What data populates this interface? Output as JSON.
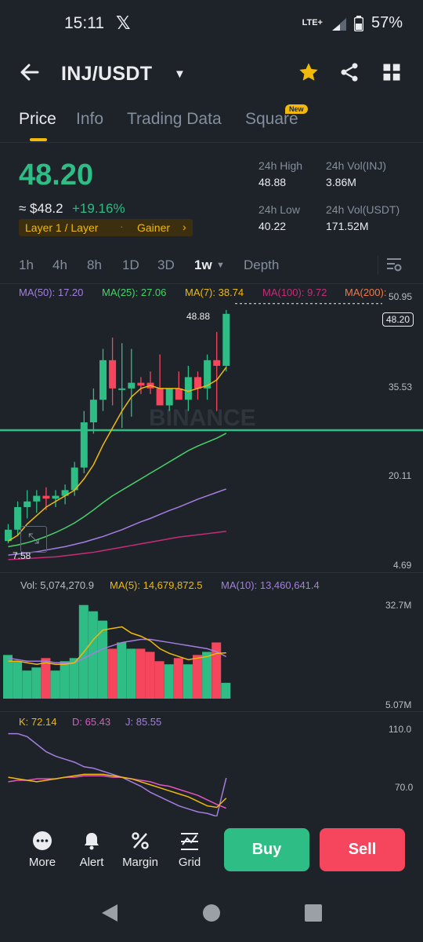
{
  "status_bar": {
    "time": "15:11",
    "app_icon": "x-logo",
    "network": "LTE+",
    "battery": "57%"
  },
  "header": {
    "back_icon": "arrow-left-icon",
    "pair": "INJ/USDT",
    "star_icon": "star-icon",
    "share_icon": "share-icon",
    "layout_icon": "grid-icon"
  },
  "tabs": [
    {
      "label": "Price"
    },
    {
      "label": "Info"
    },
    {
      "label": "Trading Data"
    },
    {
      "label": "Square"
    }
  ],
  "new_badge": "New",
  "price": {
    "last": "48.20",
    "approx": "≈ $48.2",
    "change": "+19.16%",
    "tag1": "Layer 1 / Layer",
    "tag2": "Gainer"
  },
  "stats": {
    "high_label": "24h High",
    "high_value": "48.88",
    "vol_base_label": "24h Vol(INJ)",
    "vol_base_value": "3.86M",
    "low_label": "24h Low",
    "low_value": "40.22",
    "vol_quote_label": "24h Vol(USDT)",
    "vol_quote_value": "171.52M"
  },
  "timeframes": [
    "1h",
    "4h",
    "8h",
    "1D",
    "3D",
    "1w",
    "Depth"
  ],
  "active_timeframe": "1w",
  "ma_legend": [
    {
      "label": "MA(50): 17.20",
      "color": "#a47ee0"
    },
    {
      "label": "MA(25): 27.06",
      "color": "#46d369"
    },
    {
      "label": "MA(7): 38.74",
      "color": "#f0b90b"
    },
    {
      "label": "MA(100): 9.72",
      "color": "#c72c78"
    },
    {
      "label": "MA(200): ",
      "color": "#f0794a"
    }
  ],
  "price_axis": [
    "50.95",
    "35.53",
    "20.11",
    "4.69"
  ],
  "high_marker": "48.88",
  "low_marker": "7.58",
  "last_price_tag": "48.20",
  "watermark": "BINANCE",
  "volume_legend": {
    "vol": "Vol: 5,074,270.9",
    "ma5": "MA(5): 14,679,872.5",
    "ma10": "MA(10): 13,460,641.4"
  },
  "volume_axis": [
    "32.7M",
    "5.07M"
  ],
  "kdj_legend": {
    "k": "K: 72.14",
    "d": "D: 65.43",
    "j": "J: 85.55"
  },
  "kdj_axis": [
    "110.0",
    "70.0"
  ],
  "colors": {
    "up": "#2ebd85",
    "down": "#f6465d",
    "accent": "#f0b90b"
  },
  "bottom_bar": [
    {
      "label": "More",
      "icon": "more-icon"
    },
    {
      "label": "Alert",
      "icon": "bell-icon"
    },
    {
      "label": "Margin",
      "icon": "percent-icon"
    },
    {
      "label": "Grid",
      "icon": "grid-bot-icon"
    }
  ],
  "buy_label": "Buy",
  "sell_label": "Sell",
  "chart_data": {
    "type": "candlestick",
    "ylim": [
      4.69,
      50.95
    ],
    "candles": [
      {
        "o": 8,
        "h": 11,
        "l": 7.6,
        "c": 10
      },
      {
        "o": 10,
        "h": 15,
        "l": 9,
        "c": 14
      },
      {
        "o": 14,
        "h": 17,
        "l": 12,
        "c": 15
      },
      {
        "o": 15,
        "h": 17,
        "l": 13,
        "c": 16
      },
      {
        "o": 16,
        "h": 17.5,
        "l": 13.5,
        "c": 15.5
      },
      {
        "o": 15.5,
        "h": 17,
        "l": 14,
        "c": 16
      },
      {
        "o": 16,
        "h": 18,
        "l": 14.5,
        "c": 17
      },
      {
        "o": 17,
        "h": 22,
        "l": 16,
        "c": 21
      },
      {
        "o": 21,
        "h": 31,
        "l": 20,
        "c": 29
      },
      {
        "o": 29,
        "h": 35,
        "l": 27,
        "c": 33
      },
      {
        "o": 33,
        "h": 42,
        "l": 31,
        "c": 40
      },
      {
        "o": 40,
        "h": 44,
        "l": 32,
        "c": 35
      },
      {
        "o": 35,
        "h": 43,
        "l": 28,
        "c": 35
      },
      {
        "o": 35,
        "h": 42,
        "l": 30,
        "c": 36
      },
      {
        "o": 36,
        "h": 37,
        "l": 34,
        "c": 35.5
      },
      {
        "o": 36,
        "h": 38,
        "l": 34,
        "c": 35
      },
      {
        "o": 35,
        "h": 41,
        "l": 32,
        "c": 32
      },
      {
        "o": 32,
        "h": 35,
        "l": 31,
        "c": 35
      },
      {
        "o": 35,
        "h": 38,
        "l": 33,
        "c": 33
      },
      {
        "o": 33,
        "h": 39,
        "l": 31,
        "c": 37
      },
      {
        "o": 37,
        "h": 38,
        "l": 33,
        "c": 35
      },
      {
        "o": 35,
        "h": 41,
        "l": 33,
        "c": 40
      },
      {
        "o": 40,
        "h": 45,
        "l": 31,
        "c": 39
      },
      {
        "o": 39,
        "h": 48.88,
        "l": 38,
        "c": 48.2
      }
    ],
    "ma7": [
      8,
      9,
      11,
      12.5,
      14,
      15,
      16,
      17,
      19,
      21.5,
      25,
      28,
      31,
      33.5,
      35,
      35.5,
      35,
      35,
      35,
      34.5,
      35,
      35.5,
      36.5,
      38.74
    ],
    "ma25": [
      7,
      7.3,
      7.7,
      8.2,
      8.8,
      9.5,
      10.3,
      11.2,
      12.3,
      13.5,
      14.8,
      16,
      17,
      18,
      19,
      20,
      21,
      22,
      23,
      24,
      24.8,
      25.5,
      26.2,
      27.06
    ],
    "ma50": [
      5.5,
      5.7,
      5.9,
      6.1,
      6.4,
      6.7,
      7,
      7.4,
      7.8,
      8.3,
      8.8,
      9.4,
      10,
      10.7,
      11.4,
      12,
      12.7,
      13.4,
      14,
      14.7,
      15.4,
      16,
      16.6,
      17.2
    ],
    "ma100": [
      4.7,
      4.8,
      4.9,
      5,
      5.1,
      5.2,
      5.4,
      5.6,
      5.8,
      6,
      6.3,
      6.6,
      6.9,
      7.2,
      7.5,
      7.8,
      8.1,
      8.4,
      8.7,
      8.9,
      9.1,
      9.3,
      9.5,
      9.72
    ],
    "volume": {
      "ylim": [
        0,
        32.7
      ],
      "values": [
        14,
        12,
        9,
        10,
        13,
        9,
        12,
        13,
        30,
        28,
        25,
        16,
        18,
        16,
        16,
        15,
        12,
        11,
        13,
        11,
        14,
        15,
        18,
        5.07
      ],
      "ma5": [
        12,
        12,
        11.5,
        11,
        11.5,
        11,
        11,
        11.5,
        15,
        19,
        22,
        22.5,
        23,
        21,
        20,
        18.5,
        16,
        14.5,
        13.5,
        12.5,
        13,
        13.5,
        14.5,
        14.68
      ],
      "ma10": [
        13,
        12.5,
        12,
        12,
        12,
        11.5,
        11.5,
        11.5,
        13,
        14.5,
        16,
        17,
        18,
        18.5,
        19,
        19,
        18.5,
        18,
        17.5,
        17,
        16.5,
        16,
        15,
        13.46
      ]
    },
    "kdj": {
      "ylim": [
        60,
        120
      ],
      "k": [
        86,
        85,
        84,
        83,
        84,
        85,
        86,
        87,
        88,
        88,
        88,
        87,
        86,
        85,
        83,
        81,
        79,
        77,
        75,
        73,
        70,
        67,
        66,
        72.14
      ],
      "d": [
        83,
        84,
        84,
        85,
        85,
        85,
        86,
        86,
        87,
        87,
        87,
        86,
        86,
        85,
        84,
        83,
        81,
        80,
        78,
        76,
        74,
        71,
        68,
        65.43
      ],
      "j": [
        115,
        115,
        113,
        108,
        103,
        100,
        98,
        96,
        93,
        92,
        90,
        88,
        86,
        83,
        80,
        76,
        73,
        70,
        67,
        65,
        63,
        62,
        60,
        85.55
      ]
    }
  }
}
